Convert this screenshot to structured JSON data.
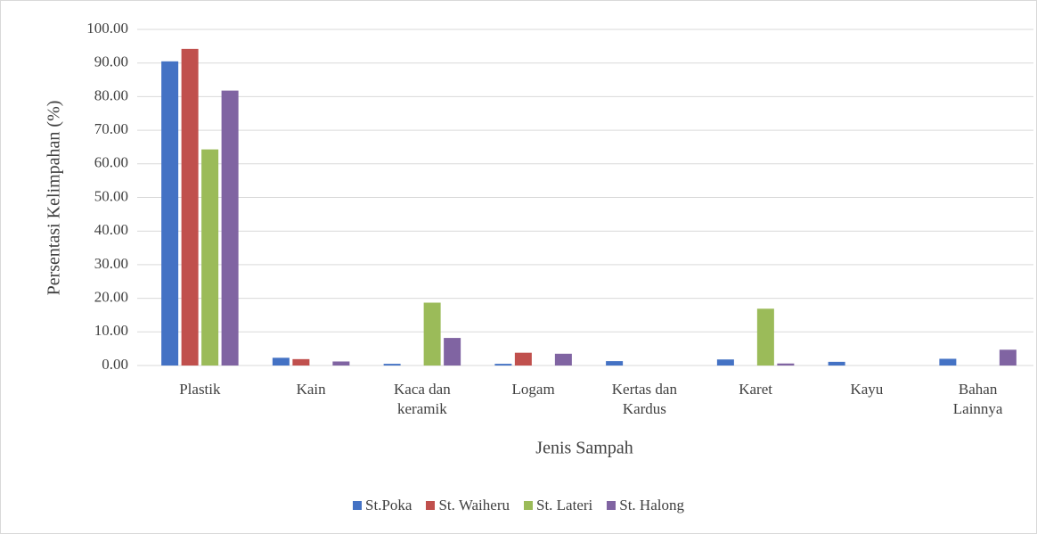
{
  "chart_data": {
    "type": "bar",
    "x_label": "Jenis Sampah",
    "y_label": "Persentasi Kelimpahan (%)",
    "categories": [
      "Plastik",
      "Kain",
      "Kaca dan keramik",
      "Logam",
      "Kertas dan Kardus",
      "Karet",
      "Kayu",
      "Bahan Lainnya"
    ],
    "series": [
      {
        "name": "St.Poka",
        "color": "#4472c4",
        "values": [
          90.5,
          2.3,
          0.5,
          0.5,
          1.3,
          1.8,
          1.1,
          2.0
        ]
      },
      {
        "name": "St. Waiheru",
        "color": "#c0504d",
        "values": [
          94.2,
          1.9,
          0,
          3.8,
          0,
          0,
          0,
          0
        ]
      },
      {
        "name": "St. Lateri",
        "color": "#9bbb59",
        "values": [
          64.3,
          0,
          18.7,
          0,
          0,
          16.9,
          0,
          0
        ]
      },
      {
        "name": "St. Halong",
        "color": "#8064a2",
        "values": [
          81.8,
          1.2,
          8.2,
          3.5,
          0,
          0.6,
          0,
          4.7
        ]
      }
    ],
    "ylim": [
      0,
      100
    ],
    "yticks": [
      {
        "value": 0,
        "label": "0.00"
      },
      {
        "value": 10,
        "label": "10.00"
      },
      {
        "value": 20,
        "label": "20.00"
      },
      {
        "value": 30,
        "label": "30.00"
      },
      {
        "value": 40,
        "label": "40.00"
      },
      {
        "value": 50,
        "label": "50.00"
      },
      {
        "value": 60,
        "label": "60.00"
      },
      {
        "value": 70,
        "label": "70.00"
      },
      {
        "value": 80,
        "label": "80.00"
      },
      {
        "value": 90,
        "label": "90.00"
      },
      {
        "value": 100,
        "label": "100.00"
      }
    ],
    "grid": true,
    "legend": "bottom"
  }
}
